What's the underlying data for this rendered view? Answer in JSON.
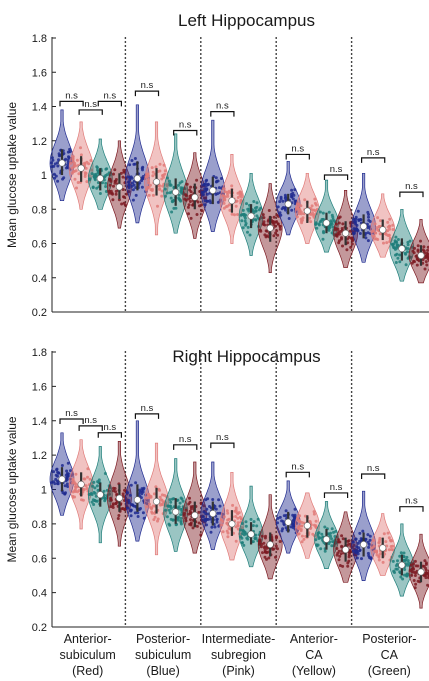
{
  "chart_data": [
    {
      "type": "violin",
      "title": "Left Hippocampus",
      "ylabel": "Mean glucose uptake value",
      "ylim": [
        0.2,
        1.8
      ],
      "yticks": [
        "0.2",
        "0.4",
        "0.6",
        "0.8",
        "1",
        "1.2",
        "1.4",
        "1.6",
        "1.8"
      ],
      "grid": false,
      "groups": [
        {
          "series": [
            {
              "color": "#1f2a8f",
              "median": 1.07,
              "q1": 1.0,
              "q3": 1.15,
              "min": 0.85,
              "max": 1.38
            },
            {
              "color": "#e07a78",
              "median": 1.04,
              "q1": 0.96,
              "q3": 1.11,
              "min": 0.8,
              "max": 1.31
            },
            {
              "color": "#1e7e7a",
              "median": 0.98,
              "q1": 0.91,
              "q3": 1.04,
              "min": 0.8,
              "max": 1.21
            },
            {
              "color": "#7c1a22",
              "median": 0.93,
              "q1": 0.86,
              "q3": 1.01,
              "min": 0.69,
              "max": 1.2
            }
          ],
          "brackets": [
            {
              "from": 0,
              "to": 1,
              "y": 1.43,
              "label": "n.s"
            },
            {
              "from": 1,
              "to": 2,
              "y": 1.38,
              "label": "n.s"
            },
            {
              "from": 2,
              "to": 3,
              "y": 1.43,
              "label": "n.s"
            }
          ]
        },
        {
          "series": [
            {
              "color": "#1f2a8f",
              "median": 0.98,
              "q1": 0.91,
              "q3": 1.08,
              "min": 0.72,
              "max": 1.41
            },
            {
              "color": "#e07a78",
              "median": 0.96,
              "q1": 0.88,
              "q3": 1.04,
              "min": 0.65,
              "max": 1.31
            },
            {
              "color": "#1e7e7a",
              "median": 0.9,
              "q1": 0.82,
              "q3": 0.98,
              "min": 0.66,
              "max": 1.24
            },
            {
              "color": "#7c1a22",
              "median": 0.87,
              "q1": 0.8,
              "q3": 0.95,
              "min": 0.63,
              "max": 1.13
            }
          ],
          "brackets": [
            {
              "from": 0,
              "to": 1,
              "y": 1.49,
              "label": "n.s"
            },
            {
              "from": 2,
              "to": 3,
              "y": 1.26,
              "label": "n.s"
            }
          ]
        },
        {
          "series": [
            {
              "color": "#1f2a8f",
              "median": 0.91,
              "q1": 0.83,
              "q3": 0.99,
              "min": 0.67,
              "max": 1.32
            },
            {
              "color": "#e07a78",
              "median": 0.85,
              "q1": 0.78,
              "q3": 0.92,
              "min": 0.6,
              "max": 1.12
            },
            {
              "color": "#1e7e7a",
              "median": 0.76,
              "q1": 0.69,
              "q3": 0.83,
              "min": 0.53,
              "max": 1.01
            },
            {
              "color": "#7c1a22",
              "median": 0.69,
              "q1": 0.61,
              "q3": 0.76,
              "min": 0.43,
              "max": 0.95
            }
          ],
          "brackets": [
            {
              "from": 0,
              "to": 1,
              "y": 1.37,
              "label": "n.s"
            }
          ]
        },
        {
          "series": [
            {
              "color": "#1f2a8f",
              "median": 0.83,
              "q1": 0.77,
              "q3": 0.89,
              "min": 0.65,
              "max": 1.08
            },
            {
              "color": "#e07a78",
              "median": 0.79,
              "q1": 0.72,
              "q3": 0.85,
              "min": 0.6,
              "max": 1.01
            },
            {
              "color": "#1e7e7a",
              "median": 0.72,
              "q1": 0.66,
              "q3": 0.78,
              "min": 0.55,
              "max": 0.97
            },
            {
              "color": "#7c1a22",
              "median": 0.66,
              "q1": 0.59,
              "q3": 0.73,
              "min": 0.46,
              "max": 0.91
            }
          ],
          "brackets": [
            {
              "from": 0,
              "to": 1,
              "y": 1.12,
              "label": "n.s"
            },
            {
              "from": 2,
              "to": 3,
              "y": 1.0,
              "label": "n.s"
            }
          ]
        },
        {
          "series": [
            {
              "color": "#1f2a8f",
              "median": 0.7,
              "q1": 0.63,
              "q3": 0.77,
              "min": 0.49,
              "max": 1.01
            },
            {
              "color": "#e07a78",
              "median": 0.68,
              "q1": 0.62,
              "q3": 0.74,
              "min": 0.52,
              "max": 0.89
            },
            {
              "color": "#1e7e7a",
              "median": 0.57,
              "q1": 0.5,
              "q3": 0.63,
              "min": 0.38,
              "max": 0.8
            },
            {
              "color": "#7c1a22",
              "median": 0.53,
              "q1": 0.47,
              "q3": 0.59,
              "min": 0.37,
              "max": 0.74
            }
          ],
          "brackets": [
            {
              "from": 0,
              "to": 1,
              "y": 1.1,
              "label": "n.s"
            },
            {
              "from": 2,
              "to": 3,
              "y": 0.9,
              "label": "n.s"
            }
          ]
        }
      ]
    },
    {
      "type": "violin",
      "title": "Right Hippocampus",
      "ylabel": "Mean glucose uptake value",
      "ylim": [
        0.2,
        1.8
      ],
      "yticks": [
        "0.2",
        "0.4",
        "0.6",
        "0.8",
        "1",
        "1.2",
        "1.4",
        "1.6",
        "1.8"
      ],
      "grid": false,
      "categories": [
        [
          "Anterior-",
          "subiculum",
          "(Red)"
        ],
        [
          "Posterior-",
          "subiculum",
          "(Blue)"
        ],
        [
          "Intermediate-",
          "subregion",
          "(Pink)"
        ],
        [
          "Anterior-",
          "CA",
          "(Yellow)"
        ],
        [
          "Posterior-",
          "CA",
          "(Green)"
        ]
      ],
      "groups": [
        {
          "series": [
            {
              "color": "#1f2a8f",
              "median": 1.06,
              "q1": 0.99,
              "q3": 1.13,
              "min": 0.85,
              "max": 1.33
            },
            {
              "color": "#e07a78",
              "median": 1.03,
              "q1": 0.96,
              "q3": 1.1,
              "min": 0.77,
              "max": 1.29
            },
            {
              "color": "#1e7e7a",
              "median": 0.97,
              "q1": 0.9,
              "q3": 1.04,
              "min": 0.69,
              "max": 1.25
            },
            {
              "color": "#7c1a22",
              "median": 0.95,
              "q1": 0.87,
              "q3": 1.03,
              "min": 0.67,
              "max": 1.28
            }
          ],
          "brackets": [
            {
              "from": 0,
              "to": 1,
              "y": 1.41,
              "label": "n.s"
            },
            {
              "from": 1,
              "to": 2,
              "y": 1.37,
              "label": "n.s"
            },
            {
              "from": 2,
              "to": 3,
              "y": 1.33,
              "label": "n.s"
            }
          ]
        },
        {
          "series": [
            {
              "color": "#1f2a8f",
              "median": 0.94,
              "q1": 0.87,
              "q3": 1.03,
              "min": 0.7,
              "max": 1.4
            },
            {
              "color": "#e07a78",
              "median": 0.93,
              "q1": 0.86,
              "q3": 1.01,
              "min": 0.62,
              "max": 1.27
            },
            {
              "color": "#1e7e7a",
              "median": 0.87,
              "q1": 0.8,
              "q3": 0.95,
              "min": 0.64,
              "max": 1.18
            },
            {
              "color": "#7c1a22",
              "median": 0.85,
              "q1": 0.78,
              "q3": 0.93,
              "min": 0.63,
              "max": 1.16
            }
          ],
          "brackets": [
            {
              "from": 0,
              "to": 1,
              "y": 1.44,
              "label": "n.s"
            },
            {
              "from": 2,
              "to": 3,
              "y": 1.26,
              "label": "n.s"
            }
          ]
        },
        {
          "series": [
            {
              "color": "#1f2a8f",
              "median": 0.86,
              "q1": 0.79,
              "q3": 0.93,
              "min": 0.65,
              "max": 1.16
            },
            {
              "color": "#e07a78",
              "median": 0.8,
              "q1": 0.73,
              "q3": 0.88,
              "min": 0.59,
              "max": 1.1
            },
            {
              "color": "#1e7e7a",
              "median": 0.74,
              "q1": 0.68,
              "q3": 0.81,
              "min": 0.55,
              "max": 1.02
            },
            {
              "color": "#7c1a22",
              "median": 0.68,
              "q1": 0.61,
              "q3": 0.75,
              "min": 0.48,
              "max": 0.97
            }
          ],
          "brackets": [
            {
              "from": 0,
              "to": 1,
              "y": 1.27,
              "label": "n.s"
            }
          ]
        },
        {
          "series": [
            {
              "color": "#1f2a8f",
              "median": 0.81,
              "q1": 0.75,
              "q3": 0.87,
              "min": 0.63,
              "max": 1.05
            },
            {
              "color": "#e07a78",
              "median": 0.79,
              "q1": 0.72,
              "q3": 0.85,
              "min": 0.6,
              "max": 0.98
            },
            {
              "color": "#1e7e7a",
              "median": 0.71,
              "q1": 0.65,
              "q3": 0.77,
              "min": 0.54,
              "max": 0.93
            },
            {
              "color": "#7c1a22",
              "median": 0.65,
              "q1": 0.58,
              "q3": 0.72,
              "min": 0.46,
              "max": 0.87
            }
          ],
          "brackets": [
            {
              "from": 0,
              "to": 1,
              "y": 1.1,
              "label": "n.s"
            },
            {
              "from": 2,
              "to": 3,
              "y": 0.98,
              "label": "n.s"
            }
          ]
        },
        {
          "series": [
            {
              "color": "#1f2a8f",
              "median": 0.68,
              "q1": 0.61,
              "q3": 0.75,
              "min": 0.47,
              "max": 0.99
            },
            {
              "color": "#e07a78",
              "median": 0.66,
              "q1": 0.6,
              "q3": 0.72,
              "min": 0.5,
              "max": 0.86
            },
            {
              "color": "#1e7e7a",
              "median": 0.56,
              "q1": 0.5,
              "q3": 0.62,
              "min": 0.38,
              "max": 0.8
            },
            {
              "color": "#7c1a22",
              "median": 0.52,
              "q1": 0.46,
              "q3": 0.58,
              "min": 0.31,
              "max": 0.74
            }
          ],
          "brackets": [
            {
              "from": 0,
              "to": 1,
              "y": 1.09,
              "label": "n.s"
            },
            {
              "from": 2,
              "to": 3,
              "y": 0.9,
              "label": "n.s"
            }
          ]
        }
      ]
    }
  ]
}
